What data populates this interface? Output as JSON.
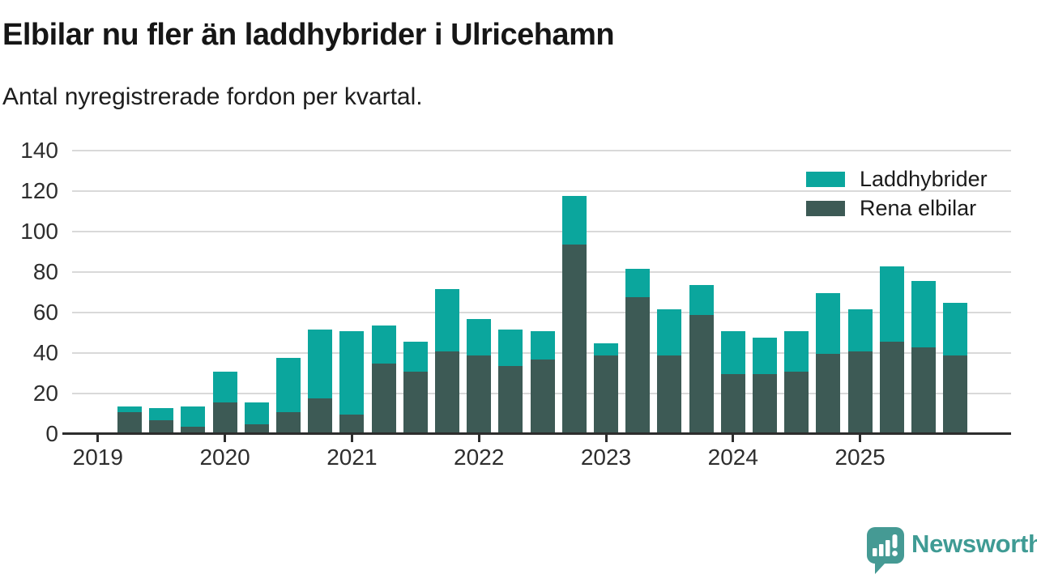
{
  "header": {
    "title": "Elbilar nu fler än laddhybrider i Ulricehamn",
    "subtitle": "Antal nyregistrerade fordon per kvartal."
  },
  "legend": {
    "items": [
      {
        "label": "Laddhybrider",
        "color": "#0ba69d",
        "series": "laddhybrider"
      },
      {
        "label": "Rena elbilar",
        "color": "#3d5a55",
        "series": "rena-elbilar"
      }
    ]
  },
  "footer": {
    "brand": "Newsworthy."
  },
  "colors": {
    "laddhybrider": "#0ba69d",
    "rena_elbilar": "#3d5a55",
    "brand": "#459a94",
    "axis": "#2d2d2d",
    "gridline": "#d9d9d9"
  },
  "chart_data": {
    "type": "bar",
    "stacked": true,
    "title": "Elbilar nu fler än laddhybrider i Ulricehamn",
    "subtitle": "Antal nyregistrerade fordon per kvartal.",
    "ylabel": "",
    "xlabel": "",
    "ylim": [
      0,
      140
    ],
    "yticks": [
      0,
      20,
      40,
      60,
      80,
      100,
      120,
      140
    ],
    "grid": "horizontal",
    "legend_position": "top-right",
    "categories": [
      "2019 Q2",
      "2019 Q3",
      "2019 Q4",
      "2020 Q1",
      "2020 Q2",
      "2020 Q3",
      "2020 Q4",
      "2021 Q1",
      "2021 Q2",
      "2021 Q3",
      "2021 Q4",
      "2022 Q1",
      "2022 Q2",
      "2022 Q3",
      "2022 Q4",
      "2023 Q1",
      "2023 Q2",
      "2023 Q3",
      "2023 Q4",
      "2024 Q1",
      "2024 Q2",
      "2024 Q3",
      "2024 Q4",
      "2025 Q1",
      "2025 Q2",
      "2025 Q3",
      "2025 Q4"
    ],
    "series": [
      {
        "name": "Rena elbilar",
        "color": "#3d5a55",
        "values": [
          10,
          6,
          3,
          15,
          4,
          10,
          17,
          9,
          34,
          30,
          40,
          38,
          33,
          36,
          93,
          38,
          67,
          38,
          58,
          29,
          29,
          30,
          39,
          40,
          45,
          42,
          38
        ]
      },
      {
        "name": "Laddhybrider",
        "color": "#0ba69d",
        "values": [
          3,
          6,
          10,
          15,
          11,
          27,
          34,
          41,
          19,
          15,
          31,
          18,
          18,
          14,
          24,
          6,
          14,
          23,
          15,
          21,
          18,
          20,
          30,
          21,
          37,
          33,
          26
        ]
      }
    ],
    "totals": [
      13,
      12,
      13,
      30,
      15,
      37,
      51,
      50,
      53,
      45,
      71,
      56,
      51,
      50,
      117,
      44,
      81,
      61,
      73,
      50,
      47,
      50,
      69,
      61,
      82,
      75,
      64
    ],
    "year_ticks": [
      {
        "label": "2019",
        "quarter_index": -1
      },
      {
        "label": "2020",
        "quarter_index": 3
      },
      {
        "label": "2021",
        "quarter_index": 7
      },
      {
        "label": "2022",
        "quarter_index": 11
      },
      {
        "label": "2023",
        "quarter_index": 15
      },
      {
        "label": "2024",
        "quarter_index": 19
      },
      {
        "label": "2025",
        "quarter_index": 23
      }
    ]
  }
}
